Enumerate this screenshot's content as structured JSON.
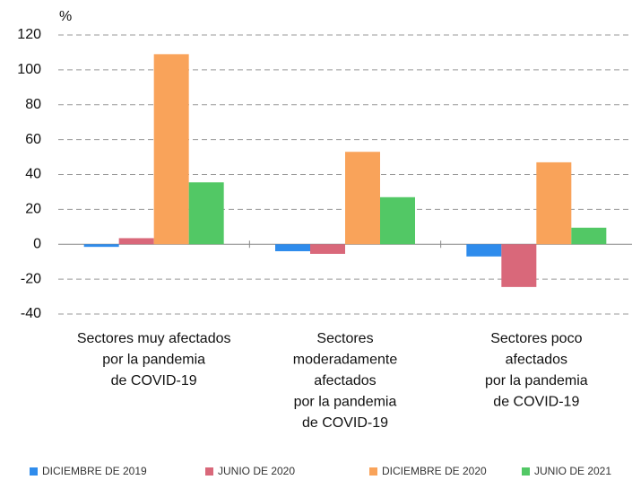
{
  "chart_data": {
    "type": "bar",
    "y_label": "%",
    "categories": [
      [
        "Sectores muy afectados",
        "por la pandemia",
        "de COVID-19"
      ],
      [
        "Sectores",
        "moderadamente",
        "afectados",
        "por la pandemia",
        "de COVID-19"
      ],
      [
        "Sectores poco",
        "afectados",
        "por la pandemia",
        "de COVID-19"
      ]
    ],
    "series": [
      {
        "name": "DICIEMBRE DE 2019",
        "color": "#2f8cec",
        "values": [
          -1.5,
          -4,
          -7
        ]
      },
      {
        "name": "JUNIO DE 2020",
        "color": "#d9687a",
        "values": [
          3.5,
          -5.5,
          -24.5
        ]
      },
      {
        "name": "DICIEMBRE DE 2020",
        "color": "#f9a35a",
        "values": [
          109,
          53,
          47
        ]
      },
      {
        "name": "JUNIO DE 2021",
        "color": "#52c865",
        "values": [
          35.5,
          27,
          9.5
        ]
      }
    ],
    "ylim": [
      -40,
      120
    ],
    "yticks": [
      -40,
      -20,
      0,
      20,
      40,
      60,
      80,
      100,
      120
    ],
    "grid": true
  }
}
